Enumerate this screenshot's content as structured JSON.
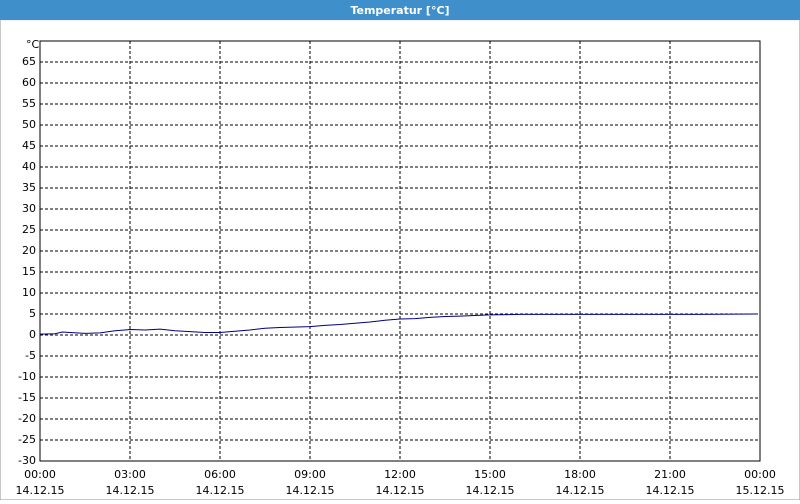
{
  "chart_data": {
    "type": "line",
    "title": "Temperatur [°C]",
    "y_unit_label": "°C",
    "xlim": [
      0,
      24
    ],
    "xticks": [
      {
        "value": 0,
        "label": "00:00\n14.12.15"
      },
      {
        "value": 3,
        "label": "03:00\n14.12.15"
      },
      {
        "value": 6,
        "label": "06:00\n14.12.15"
      },
      {
        "value": 9,
        "label": "09:00\n14.12.15"
      },
      {
        "value": 12,
        "label": "12:00\n14.12.15"
      },
      {
        "value": 15,
        "label": "15:00\n14.12.15"
      },
      {
        "value": 18,
        "label": "18:00\n14.12.15"
      },
      {
        "value": 21,
        "label": "21:00\n14.12.15"
      },
      {
        "value": 24,
        "label": "00:00\n15.12.15"
      }
    ],
    "ylim": [
      -30,
      70
    ],
    "yticks": [
      -30,
      -25,
      -20,
      -15,
      -10,
      -5,
      0,
      5,
      10,
      15,
      20,
      25,
      30,
      35,
      40,
      45,
      50,
      55,
      60,
      65
    ],
    "grid": true,
    "series": [
      {
        "color": "#000080",
        "x": [
          0,
          0.5,
          0.75,
          1,
          1.5,
          2,
          2.5,
          3,
          3.5,
          4,
          4.5,
          5,
          5.5,
          6,
          6.5,
          7,
          7.5,
          8,
          9,
          9.5,
          10,
          10.5,
          11,
          11.5,
          12,
          12.5,
          13,
          13.5,
          14,
          15,
          16,
          18,
          20,
          22,
          23.9
        ],
        "values": [
          0.2,
          0.3,
          0.7,
          0.6,
          0.4,
          0.5,
          1.0,
          1.3,
          1.2,
          1.4,
          1.0,
          0.8,
          0.6,
          0.6,
          0.9,
          1.2,
          1.6,
          1.8,
          2.0,
          2.3,
          2.5,
          2.8,
          3.1,
          3.5,
          3.8,
          3.9,
          4.2,
          4.4,
          4.5,
          4.8,
          4.9,
          4.9,
          4.9,
          4.9,
          5.0
        ]
      }
    ]
  }
}
